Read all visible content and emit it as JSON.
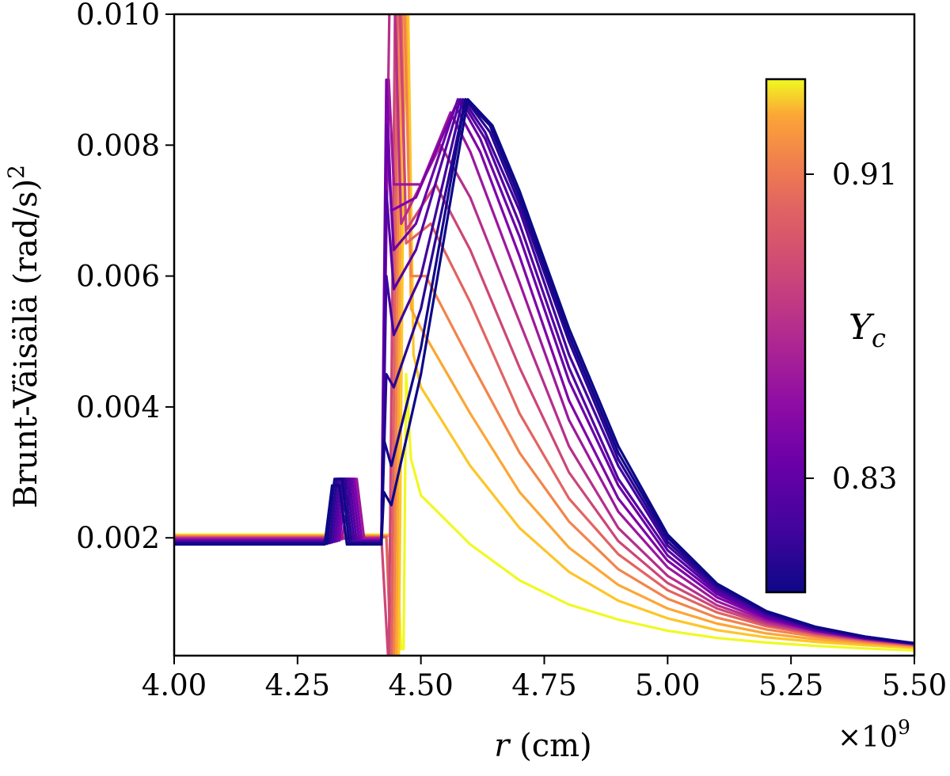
{
  "chart_data": {
    "type": "line",
    "title": "",
    "xlabel": "r (cm)",
    "xlabel_var": "r",
    "xlabel_unit": " (cm)",
    "ylabel": "Brunt-Väisälä (rad/s)²",
    "ylabel_main": "Brunt-Väisälä (rad/s)",
    "ylabel_exp": "2",
    "x_multiplier": "×10⁹",
    "x_multiplier_base": "×10",
    "x_multiplier_exp": "9",
    "xlim": [
      4.0,
      5.5
    ],
    "ylim": [
      0.0002,
      0.01
    ],
    "xticks": [
      4.0,
      4.25,
      4.5,
      4.75,
      5.0,
      5.25,
      5.5
    ],
    "xtick_labels": [
      "4.00",
      "4.25",
      "4.50",
      "4.75",
      "5.00",
      "5.25",
      "5.50"
    ],
    "yticks": [
      0.002,
      0.004,
      0.006,
      0.008,
      0.01
    ],
    "ytick_labels": [
      "0.002",
      "0.004",
      "0.006",
      "0.008",
      "0.010"
    ],
    "grid": false,
    "colormap": "plasma",
    "colorbar": {
      "label": "Y",
      "label_sub": "c",
      "min": 0.8,
      "max": 0.935,
      "ticks": [
        0.83,
        0.91
      ],
      "tick_labels": [
        "0.83",
        "0.91"
      ]
    },
    "series_count": 16,
    "series": [
      {
        "name": "Yc=0.930",
        "color": "#f0f921",
        "points": [
          [
            4.0,
            0.00205
          ],
          [
            4.45,
            0.00205
          ],
          [
            4.46,
            0.0003
          ],
          [
            4.465,
            0.0003
          ],
          [
            4.47,
            0.0045
          ],
          [
            4.48,
            0.0032
          ],
          [
            4.5,
            0.00265
          ],
          [
            4.6,
            0.0019
          ],
          [
            4.7,
            0.00135
          ],
          [
            4.8,
            0.00098
          ],
          [
            4.9,
            0.00075
          ],
          [
            5.0,
            0.00058
          ],
          [
            5.1,
            0.00047
          ],
          [
            5.2,
            0.0004
          ],
          [
            5.3,
            0.00035
          ],
          [
            5.4,
            0.00031
          ],
          [
            5.5,
            0.00028
          ]
        ]
      },
      {
        "name": "Yc=0.922",
        "color": "#fdc527",
        "points": [
          [
            4.0,
            0.00204
          ],
          [
            4.44,
            0.00204
          ],
          [
            4.455,
            0.0
          ],
          [
            4.47,
            0.012
          ],
          [
            4.485,
            0.0048
          ],
          [
            4.5,
            0.0043
          ],
          [
            4.6,
            0.0031
          ],
          [
            4.7,
            0.00215
          ],
          [
            4.8,
            0.00148
          ],
          [
            4.9,
            0.00104
          ],
          [
            5.0,
            0.00077
          ],
          [
            5.1,
            0.00059
          ],
          [
            5.2,
            0.00048
          ],
          [
            5.3,
            0.00041
          ],
          [
            5.4,
            0.00036
          ],
          [
            5.5,
            0.00032
          ]
        ]
      },
      {
        "name": "Yc=0.914",
        "color": "#fca636",
        "points": [
          [
            4.0,
            0.00203
          ],
          [
            4.44,
            0.00203
          ],
          [
            4.45,
            0.0
          ],
          [
            4.465,
            0.012
          ],
          [
            4.48,
            0.0055
          ],
          [
            4.5,
            0.0052
          ],
          [
            4.6,
            0.0039
          ],
          [
            4.7,
            0.0027
          ],
          [
            4.8,
            0.00185
          ],
          [
            4.9,
            0.00128
          ],
          [
            5.0,
            0.00092
          ],
          [
            5.1,
            0.00069
          ],
          [
            5.2,
            0.00054
          ],
          [
            5.3,
            0.00045
          ],
          [
            5.4,
            0.00039
          ],
          [
            5.5,
            0.00034
          ]
        ]
      },
      {
        "name": "Yc=0.906",
        "color": "#f2844b",
        "points": [
          [
            4.0,
            0.00202
          ],
          [
            4.43,
            0.00202
          ],
          [
            4.445,
            0.0
          ],
          [
            4.46,
            0.012
          ],
          [
            4.48,
            0.006
          ],
          [
            4.51,
            0.006
          ],
          [
            4.6,
            0.0047
          ],
          [
            4.7,
            0.0033
          ],
          [
            4.8,
            0.00225
          ],
          [
            4.9,
            0.00152
          ],
          [
            5.0,
            0.00107
          ],
          [
            5.1,
            0.00078
          ],
          [
            5.2,
            0.0006
          ],
          [
            5.3,
            0.00049
          ],
          [
            5.4,
            0.00041
          ],
          [
            5.5,
            0.00035
          ]
        ]
      },
      {
        "name": "Yc=0.898",
        "color": "#e16462",
        "points": [
          [
            4.0,
            0.00201
          ],
          [
            4.43,
            0.00201
          ],
          [
            4.44,
            0.0
          ],
          [
            4.455,
            0.012
          ],
          [
            4.47,
            0.0065
          ],
          [
            4.52,
            0.0068
          ],
          [
            4.6,
            0.0056
          ],
          [
            4.7,
            0.0039
          ],
          [
            4.8,
            0.0026
          ],
          [
            4.9,
            0.00175
          ],
          [
            5.0,
            0.0012
          ],
          [
            5.1,
            0.00086
          ],
          [
            5.2,
            0.00065
          ],
          [
            5.3,
            0.00052
          ],
          [
            5.4,
            0.00043
          ],
          [
            5.5,
            0.00036
          ]
        ]
      },
      {
        "name": "Yc=0.890",
        "color": "#cc4778",
        "points": [
          [
            4.0,
            0.002
          ],
          [
            4.42,
            0.002
          ],
          [
            4.435,
            0.0
          ],
          [
            4.45,
            0.012
          ],
          [
            4.47,
            0.0067
          ],
          [
            4.53,
            0.0074
          ],
          [
            4.6,
            0.0064
          ],
          [
            4.7,
            0.0046
          ],
          [
            4.8,
            0.003
          ],
          [
            4.9,
            0.00195
          ],
          [
            5.0,
            0.00131
          ],
          [
            5.1,
            0.00092
          ],
          [
            5.2,
            0.00068
          ],
          [
            5.3,
            0.00054
          ],
          [
            5.4,
            0.00044
          ],
          [
            5.5,
            0.00037
          ]
        ]
      },
      {
        "name": "Yc=0.882",
        "color": "#b52f8c",
        "points": [
          [
            4.0,
            0.00199
          ],
          [
            4.36,
            0.00199
          ],
          [
            4.42,
            0.002
          ],
          [
            4.44,
            0.012
          ],
          [
            4.46,
            0.0068
          ],
          [
            4.54,
            0.008
          ],
          [
            4.6,
            0.0072
          ],
          [
            4.7,
            0.0053
          ],
          [
            4.8,
            0.0034
          ],
          [
            4.9,
            0.00215
          ],
          [
            5.0,
            0.00142
          ],
          [
            5.1,
            0.00097
          ],
          [
            5.2,
            0.00071
          ],
          [
            5.3,
            0.00055
          ],
          [
            5.4,
            0.00045
          ],
          [
            5.5,
            0.00037
          ]
        ]
      },
      {
        "name": "Yc=0.874",
        "color": "#9c179e",
        "points": [
          [
            4.0,
            0.00198
          ],
          [
            4.34,
            0.00198
          ],
          [
            4.36,
            0.0029
          ],
          [
            4.37,
            0.0029
          ],
          [
            4.385,
            0.00198
          ],
          [
            4.42,
            0.00198
          ],
          [
            4.435,
            0.009
          ],
          [
            4.445,
            0.0074
          ],
          [
            4.5,
            0.0074
          ],
          [
            4.56,
            0.0085
          ],
          [
            4.6,
            0.0079
          ],
          [
            4.7,
            0.0059
          ],
          [
            4.8,
            0.0038
          ],
          [
            4.9,
            0.0024
          ],
          [
            5.0,
            0.00155
          ],
          [
            5.1,
            0.00103
          ],
          [
            5.2,
            0.00074
          ],
          [
            5.3,
            0.00057
          ],
          [
            5.4,
            0.00046
          ],
          [
            5.5,
            0.00038
          ]
        ]
      },
      {
        "name": "Yc=0.866",
        "color": "#7e03a8",
        "points": [
          [
            4.0,
            0.00196
          ],
          [
            4.335,
            0.00196
          ],
          [
            4.35,
            0.0029
          ],
          [
            4.365,
            0.0029
          ],
          [
            4.38,
            0.00196
          ],
          [
            4.42,
            0.00196
          ],
          [
            4.43,
            0.009
          ],
          [
            4.44,
            0.007
          ],
          [
            4.49,
            0.0072
          ],
          [
            4.57,
            0.0086
          ],
          [
            4.62,
            0.0079
          ],
          [
            4.7,
            0.0063
          ],
          [
            4.8,
            0.0041
          ],
          [
            4.9,
            0.0026
          ],
          [
            5.0,
            0.00165
          ],
          [
            5.1,
            0.00109
          ],
          [
            5.2,
            0.00077
          ],
          [
            5.3,
            0.00058
          ],
          [
            5.4,
            0.00046
          ],
          [
            5.5,
            0.00038
          ]
        ]
      },
      {
        "name": "Yc=0.858",
        "color": "#6a00a8",
        "points": [
          [
            4.0,
            0.00195
          ],
          [
            4.33,
            0.00195
          ],
          [
            4.345,
            0.0029
          ],
          [
            4.36,
            0.0029
          ],
          [
            4.375,
            0.00195
          ],
          [
            4.42,
            0.00195
          ],
          [
            4.43,
            0.0083
          ],
          [
            4.445,
            0.0064
          ],
          [
            4.49,
            0.0068
          ],
          [
            4.575,
            0.0087
          ],
          [
            4.62,
            0.0081
          ],
          [
            4.7,
            0.0066
          ],
          [
            4.8,
            0.0044
          ],
          [
            4.9,
            0.0028
          ],
          [
            5.0,
            0.00173
          ],
          [
            5.1,
            0.00114
          ],
          [
            5.2,
            0.00079
          ],
          [
            5.3,
            0.00059
          ],
          [
            5.4,
            0.00047
          ],
          [
            5.5,
            0.00038
          ]
        ]
      },
      {
        "name": "Yc=0.850",
        "color": "#5402a3",
        "points": [
          [
            4.0,
            0.00194
          ],
          [
            4.325,
            0.00194
          ],
          [
            4.34,
            0.0029
          ],
          [
            4.355,
            0.0029
          ],
          [
            4.37,
            0.00194
          ],
          [
            4.42,
            0.00194
          ],
          [
            4.43,
            0.0073
          ],
          [
            4.445,
            0.0058
          ],
          [
            4.49,
            0.0064
          ],
          [
            4.58,
            0.0087
          ],
          [
            4.63,
            0.0081
          ],
          [
            4.7,
            0.0068
          ],
          [
            4.8,
            0.0046
          ],
          [
            4.9,
            0.0029
          ],
          [
            5.0,
            0.00181
          ],
          [
            5.1,
            0.00118
          ],
          [
            5.2,
            0.00081
          ],
          [
            5.3,
            0.0006
          ],
          [
            5.4,
            0.00047
          ],
          [
            5.5,
            0.00039
          ]
        ]
      },
      {
        "name": "Yc=0.842",
        "color": "#41049d",
        "points": [
          [
            4.0,
            0.00193
          ],
          [
            4.32,
            0.00193
          ],
          [
            4.335,
            0.0029
          ],
          [
            4.35,
            0.0029
          ],
          [
            4.365,
            0.00193
          ],
          [
            4.42,
            0.00193
          ],
          [
            4.43,
            0.006
          ],
          [
            4.445,
            0.0051
          ],
          [
            4.5,
            0.006
          ],
          [
            4.585,
            0.0087
          ],
          [
            4.63,
            0.0082
          ],
          [
            4.7,
            0.007
          ],
          [
            4.8,
            0.0048
          ],
          [
            4.9,
            0.0031
          ],
          [
            5.0,
            0.00188
          ],
          [
            5.1,
            0.00122
          ],
          [
            5.2,
            0.00083
          ],
          [
            5.3,
            0.00061
          ],
          [
            5.4,
            0.00048
          ],
          [
            5.5,
            0.00039
          ]
        ]
      },
      {
        "name": "Yc=0.834",
        "color": "#2a0593",
        "points": [
          [
            4.0,
            0.00192
          ],
          [
            4.315,
            0.00192
          ],
          [
            4.33,
            0.0029
          ],
          [
            4.345,
            0.0029
          ],
          [
            4.36,
            0.00192
          ],
          [
            4.42,
            0.00192
          ],
          [
            4.43,
            0.0045
          ],
          [
            4.445,
            0.0043
          ],
          [
            4.5,
            0.0055
          ],
          [
            4.59,
            0.0087
          ],
          [
            4.64,
            0.0082
          ],
          [
            4.7,
            0.0071
          ],
          [
            4.8,
            0.005
          ],
          [
            4.9,
            0.0032
          ],
          [
            5.0,
            0.00194
          ],
          [
            5.1,
            0.00125
          ],
          [
            5.2,
            0.00085
          ],
          [
            5.3,
            0.00062
          ],
          [
            5.4,
            0.00048
          ],
          [
            5.5,
            0.00039
          ]
        ]
      },
      {
        "name": "Yc=0.826",
        "color": "#13068a",
        "points": [
          [
            4.0,
            0.00191
          ],
          [
            4.31,
            0.00191
          ],
          [
            4.325,
            0.0029
          ],
          [
            4.34,
            0.0029
          ],
          [
            4.355,
            0.00191
          ],
          [
            4.42,
            0.00191
          ],
          [
            4.425,
            0.0035
          ],
          [
            4.44,
            0.0031
          ],
          [
            4.5,
            0.0049
          ],
          [
            4.59,
            0.0087
          ],
          [
            4.64,
            0.0083
          ],
          [
            4.7,
            0.0072
          ],
          [
            4.8,
            0.0051
          ],
          [
            4.9,
            0.0033
          ],
          [
            5.0,
            0.002
          ],
          [
            5.1,
            0.00128
          ],
          [
            5.2,
            0.00087
          ],
          [
            5.3,
            0.00063
          ],
          [
            5.4,
            0.00049
          ],
          [
            5.5,
            0.00039
          ]
        ]
      },
      {
        "name": "Yc=0.818",
        "color": "#0d0887",
        "points": [
          [
            4.0,
            0.0019
          ],
          [
            4.305,
            0.0019
          ],
          [
            4.32,
            0.0028
          ],
          [
            4.335,
            0.0028
          ],
          [
            4.35,
            0.0019
          ],
          [
            4.42,
            0.0019
          ],
          [
            4.425,
            0.0027
          ],
          [
            4.44,
            0.0025
          ],
          [
            4.5,
            0.0045
          ],
          [
            4.595,
            0.0087
          ],
          [
            4.645,
            0.0083
          ],
          [
            4.7,
            0.0073
          ],
          [
            4.8,
            0.0052
          ],
          [
            4.9,
            0.0034
          ],
          [
            5.0,
            0.00205
          ],
          [
            5.1,
            0.0013
          ],
          [
            5.2,
            0.00088
          ],
          [
            5.3,
            0.00064
          ],
          [
            5.4,
            0.00049
          ],
          [
            5.5,
            0.00039
          ]
        ]
      }
    ]
  }
}
